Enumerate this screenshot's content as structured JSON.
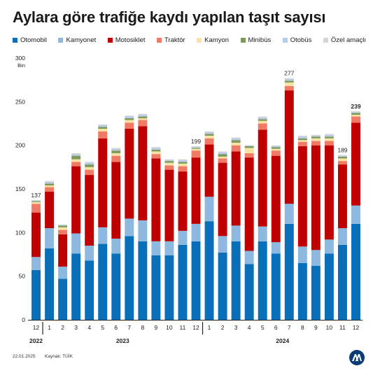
{
  "title": "Aylara göre trafiğe kaydı yapılan taşıt sayısı",
  "footer": {
    "date": "22.01.2025",
    "source": "Kaynak: TÜİK"
  },
  "logo_icon": "aa-logo-icon",
  "chart_data": {
    "type": "bar",
    "stacked": true,
    "ylabel": "Bin",
    "ylim": [
      0,
      300
    ],
    "yticks": [
      0,
      50,
      100,
      150,
      200,
      250,
      300
    ],
    "grid": false,
    "legend_position": "top",
    "categories": [
      "12",
      "1",
      "2",
      "3",
      "4",
      "5",
      "6",
      "7",
      "8",
      "9",
      "10",
      "11",
      "12",
      "1",
      "2",
      "3",
      "4",
      "5",
      "6",
      "7",
      "8",
      "9",
      "10",
      "11",
      "12"
    ],
    "year_labels": [
      {
        "label": "2022",
        "start": 0,
        "end": 0
      },
      {
        "label": "2023",
        "start": 1,
        "end": 12
      },
      {
        "label": "2024",
        "start": 13,
        "end": 24
      }
    ],
    "totals_labels": [
      {
        "index": 0,
        "text": "137"
      },
      {
        "index": 12,
        "text": "199"
      },
      {
        "index": 19,
        "text": "277"
      },
      {
        "index": 23,
        "text": "189"
      },
      {
        "index": 24,
        "text": "239"
      }
    ],
    "series": [
      {
        "name": "Otomobil",
        "color": "#0a6fb9",
        "values": [
          57,
          82,
          47,
          76,
          68,
          87,
          76,
          96,
          90,
          74,
          74,
          86,
          90,
          113,
          77,
          90,
          64,
          90,
          76,
          110,
          65,
          62,
          76,
          86,
          110
        ]
      },
      {
        "name": "Kamyonet",
        "color": "#8db9e0",
        "values": [
          15,
          23,
          14,
          23,
          17,
          19,
          17,
          20,
          24,
          16,
          16,
          16,
          20,
          28,
          19,
          18,
          15,
          17,
          13,
          23,
          19,
          18,
          16,
          19,
          21
        ]
      },
      {
        "name": "Motosiklet",
        "color": "#c00000",
        "values": [
          51,
          42,
          37,
          77,
          81,
          102,
          88,
          103,
          108,
          95,
          82,
          68,
          76,
          60,
          84,
          85,
          107,
          111,
          99,
          130,
          115,
          120,
          108,
          73,
          95
        ]
      },
      {
        "name": "Traktör",
        "color": "#f07a66",
        "values": [
          10,
          5,
          5,
          5,
          6,
          8,
          7,
          7,
          7,
          5,
          5,
          6,
          8,
          7,
          5,
          7,
          5,
          7,
          6,
          5,
          5,
          5,
          5,
          4,
          7
        ]
      },
      {
        "name": "Kamyon",
        "color": "#f7e3a2",
        "values": [
          2,
          2,
          3,
          3,
          3,
          3,
          3,
          3,
          2,
          3,
          3,
          3,
          2,
          3,
          2,
          3,
          6,
          3,
          2,
          4,
          2,
          3,
          3,
          3,
          2
        ]
      },
      {
        "name": "Minibüs",
        "color": "#7d9a5c",
        "values": [
          1,
          2,
          2,
          4,
          3,
          2,
          3,
          2,
          2,
          2,
          2,
          2,
          1,
          2,
          3,
          3,
          2,
          2,
          2,
          2,
          2,
          2,
          2,
          2,
          2
        ]
      },
      {
        "name": "Otobüs",
        "color": "#b9cbe6",
        "values": [
          1,
          2,
          1,
          2,
          2,
          2,
          2,
          2,
          2,
          2,
          1,
          2,
          1,
          2,
          2,
          2,
          1,
          2,
          1,
          2,
          2,
          1,
          2,
          1,
          1
        ]
      },
      {
        "name": "Özel amaçlı",
        "color": "#d5d5d5",
        "values": [
          0,
          1,
          0,
          1,
          1,
          1,
          1,
          1,
          1,
          1,
          1,
          1,
          1,
          1,
          1,
          1,
          0,
          1,
          1,
          1,
          1,
          1,
          1,
          1,
          1
        ]
      }
    ]
  }
}
